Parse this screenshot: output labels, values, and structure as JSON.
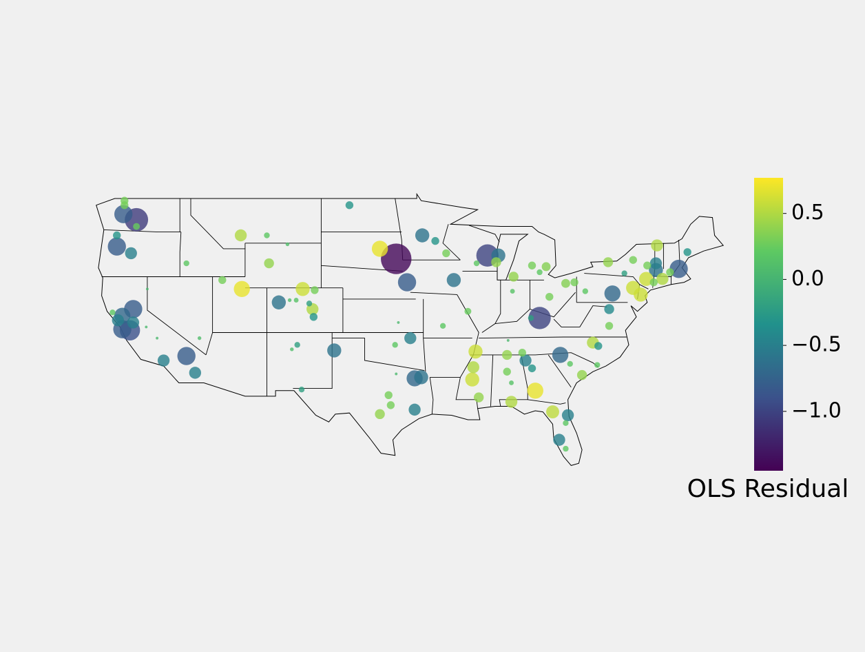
{
  "chart_data": {
    "type": "bubble-map",
    "colorbar_label": "OLS Residual",
    "clim": [
      -1.45,
      0.77
    ],
    "cticks": [
      {
        "value": 0.5,
        "label": "0.5"
      },
      {
        "value": 0.0,
        "label": "0.0"
      },
      {
        "value": -0.5,
        "label": "−0.5"
      },
      {
        "value": -1.0,
        "label": "−1.0"
      }
    ],
    "points": {
      "lon": [
        -122.1,
        -122.1,
        -122.2,
        -121.0,
        -121.0,
        -122.8,
        -122.8,
        -121.5,
        -116.4,
        -111.4,
        -109.0,
        -107.1,
        -108.8,
        -113.1,
        -111.3,
        -105.7,
        -104.6,
        -107.9,
        -106.9,
        -106.3,
        -105.1,
        -104.8,
        -104.7,
        -123.2,
        -121.3,
        -122.3,
        -122.7,
        -121.3,
        -122.3,
        -121.6,
        -119.1,
        -120.1,
        -118.5,
        -116.4,
        -115.6,
        -115.2,
        -120.0,
        -101.4,
        -94.7,
        -93.5,
        -98.6,
        -97.1,
        -96.1,
        -91.8,
        -92.5,
        -88.7,
        -87.7,
        -87.9,
        -89.7,
        -86.3,
        -84.6,
        -83.3,
        -83.9,
        -81.5,
        -80.7,
        -83.0,
        -83.9,
        -84.7,
        -90.5,
        -86.4,
        -92.8,
        -95.8,
        -96.9,
        -97.2,
        -102.8,
        -106.2,
        -106.7,
        -105.8,
        -97.1,
        -95.4,
        -94.8,
        -97.8,
        -97.6,
        -98.6,
        -95.4,
        -89.8,
        -90.0,
        -90.1,
        -89.5,
        -86.8,
        -86.9,
        -85.5,
        -85.2,
        -86.9,
        -86.5,
        -86.5,
        -84.3,
        -84.6,
        -82.0,
        -81.1,
        -80.0,
        -79.0,
        -78.5,
        -78.6,
        -82.7,
        -81.3,
        -81.5,
        -82.1,
        -81.5,
        -77.5,
        -77.5,
        -77.2,
        -77.6,
        -75.3,
        -73.1,
        -74.0,
        -73.2,
        -73.2,
        -71.1,
        -70.3,
        -72.6,
        -74.1,
        -75.3,
        -74.6,
        -73.4,
        -71.9,
        -76.1,
        -79.7
      ],
      "lat": [
        48.8,
        48.4,
        47.6,
        47.1,
        46.5,
        45.7,
        44.7,
        44.1,
        43.2,
        45.7,
        45.7,
        44.9,
        43.2,
        41.7,
        40.9,
        40.9,
        40.8,
        39.7,
        39.9,
        39.9,
        39.6,
        39.1,
        38.4,
        38.8,
        39.1,
        38.5,
        38.1,
        37.9,
        37.3,
        37.2,
        36.5,
        37.5,
        34.5,
        34.9,
        33.4,
        36.5,
        40.9,
        48.4,
        45.7,
        45.2,
        44.5,
        43.6,
        41.5,
        41.7,
        44.1,
        43.9,
        43.9,
        43.3,
        43.2,
        42.0,
        43.0,
        42.9,
        42.4,
        41.4,
        41.5,
        40.2,
        38.3,
        38.3,
        38.9,
        40.7,
        37.6,
        36.5,
        37.9,
        35.9,
        35.4,
        35.9,
        35.5,
        31.9,
        33.3,
        32.9,
        33.0,
        31.4,
        30.5,
        29.7,
        30.1,
        35.3,
        33.9,
        32.8,
        31.2,
        36.3,
        35.0,
        35.2,
        34.5,
        33.5,
        32.5,
        30.8,
        31.8,
        33.8,
        35.0,
        34.2,
        33.2,
        36.1,
        35.8,
        34.1,
        29.9,
        29.6,
        28.9,
        27.4,
        26.6,
        37.6,
        39.1,
        40.5,
        43.3,
        43.5,
        44.8,
        43.0,
        43.2,
        42.6,
        42.7,
        44.2,
        41.8,
        41.8,
        41.0,
        40.4,
        41.5,
        42.4,
        42.3,
        40.7
      ],
      "values": [
        0.3,
        0.3,
        -0.8,
        -1.05,
        0.25,
        -0.3,
        -0.8,
        -0.5,
        0.2,
        0.5,
        0.2,
        0.1,
        0.4,
        0.3,
        0.7,
        0.6,
        0.3,
        -0.6,
        0.1,
        0.15,
        -0.2,
        0.5,
        -0.3,
        0.2,
        -0.8,
        -0.7,
        -0.5,
        -0.5,
        -0.8,
        -0.9,
        0.05,
        0.05,
        -0.5,
        -0.8,
        -0.5,
        0.1,
        0.05,
        -0.3,
        -0.6,
        -0.3,
        0.7,
        -1.4,
        -0.8,
        -0.6,
        0.3,
        -1.0,
        -0.6,
        0.4,
        0.2,
        0.4,
        0.3,
        0.35,
        0.2,
        0.35,
        0.3,
        0.3,
        -1.0,
        -0.2,
        0.25,
        0.15,
        0.2,
        -0.5,
        0.05,
        0.2,
        -0.6,
        -0.2,
        0.1,
        -0.2,
        0.05,
        -0.7,
        -0.6,
        0.3,
        0.3,
        0.4,
        -0.5,
        0.6,
        0.5,
        0.6,
        0.4,
        0.05,
        0.4,
        0.3,
        -0.5,
        0.3,
        0.15,
        0.5,
        0.7,
        -0.3,
        -0.7,
        0.2,
        0.4,
        0.5,
        -0.3,
        0.2,
        0.55,
        -0.5,
        0.2,
        -0.5,
        0.2,
        0.3,
        -0.4,
        -0.7,
        0.4,
        0.3,
        0.5,
        0.3,
        -0.5,
        -0.6,
        -0.8,
        -0.3,
        0.5,
        0.6,
        0.6,
        0.6,
        0.3,
        0.3,
        -0.2,
        0.2
      ]
    }
  }
}
